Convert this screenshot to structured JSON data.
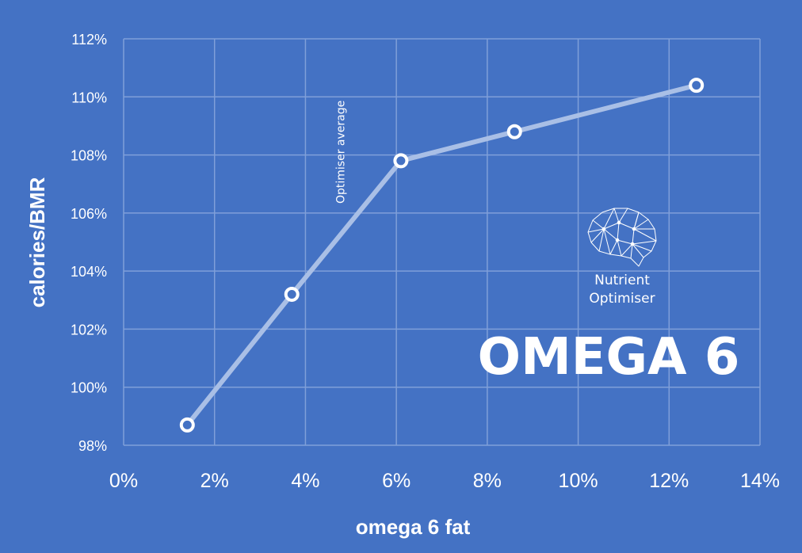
{
  "chart_data": {
    "type": "line",
    "title": "OMEGA 6",
    "xlabel": "omega 6 fat",
    "ylabel": "calories/BMR",
    "x_ticks": [
      "0%",
      "2%",
      "4%",
      "6%",
      "8%",
      "10%",
      "12%",
      "14%"
    ],
    "y_ticks": [
      "98%",
      "100%",
      "102%",
      "104%",
      "106%",
      "108%",
      "110%",
      "112%"
    ],
    "xlim": [
      0,
      14
    ],
    "ylim": [
      98,
      112
    ],
    "grid": true,
    "series": [
      {
        "x": [
          1.4,
          3.7,
          6.1,
          8.6,
          12.6
        ],
        "y": [
          98.7,
          103.2,
          107.8,
          108.8,
          110.4
        ]
      }
    ],
    "annotations": [
      {
        "text": "Optimiser average",
        "x": 4.8,
        "orientation": "vertical"
      }
    ],
    "colors": {
      "background": "#4472C4",
      "line": "#A9BFE6",
      "grid": "#7F9FD9",
      "marker_stroke": "#ffffff",
      "marker_fill": "#4472C4"
    }
  },
  "logo": {
    "icon": "brain-network-icon",
    "line1": "Nutrient",
    "line2": "Optimiser"
  }
}
